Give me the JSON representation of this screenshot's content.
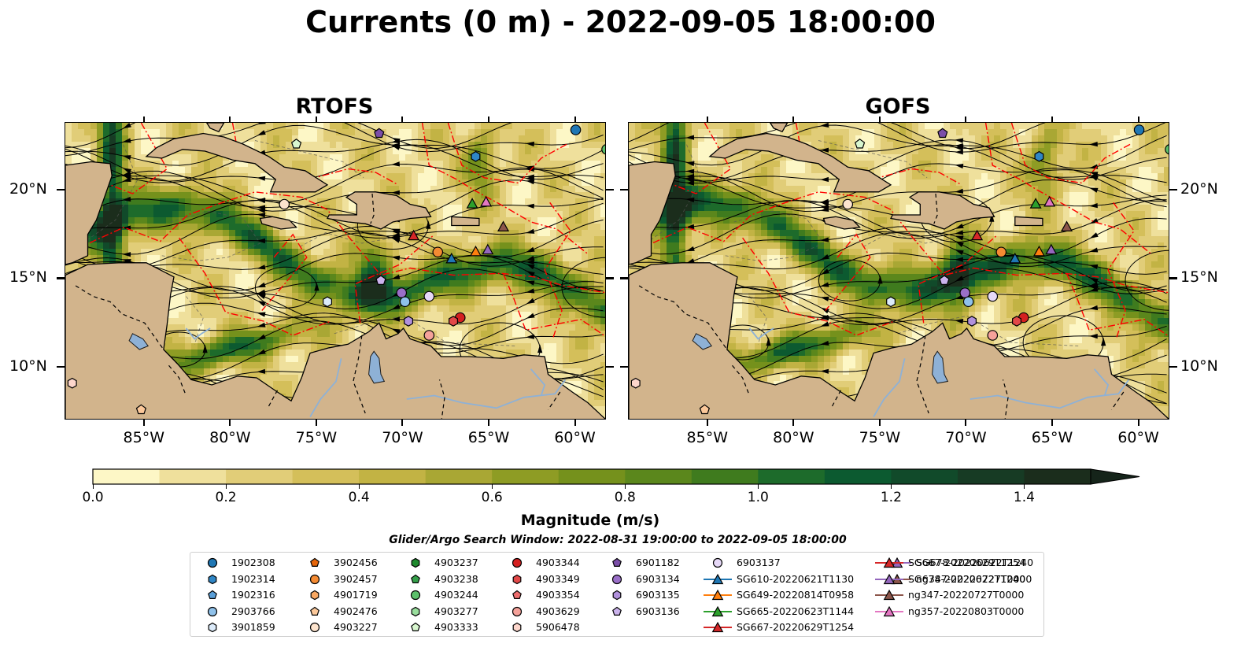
{
  "title": "Currents (0 m) - 2022-09-05 18:00:00",
  "panels": [
    {
      "id": "rtofs",
      "title": "RTOFS"
    },
    {
      "id": "gofs",
      "title": "GOFS"
    }
  ],
  "axes": {
    "x_ticks": [
      "85°W",
      "80°W",
      "75°W",
      "70°W",
      "65°W",
      "60°W"
    ],
    "x_values": [
      -85,
      -80,
      -75,
      -70,
      -65,
      -60
    ],
    "y_ticks": [
      "20°N",
      "15°N",
      "10°N"
    ],
    "y_values": [
      20,
      15,
      10
    ],
    "lon_range": [
      -89.6,
      -58.2
    ],
    "lat_range": [
      7.0,
      23.8
    ]
  },
  "colorbar": {
    "label": "Magnitude (m/s)",
    "ticks": [
      "0.0",
      "0.2",
      "0.4",
      "0.6",
      "0.8",
      "1.0",
      "1.2",
      "1.4"
    ],
    "tick_values": [
      0.0,
      0.2,
      0.4,
      0.6,
      0.8,
      1.0,
      1.2,
      1.4
    ],
    "range": [
      0.0,
      1.5
    ],
    "extend": "max",
    "colors": [
      "#fdf7c6",
      "#efe09c",
      "#e1cd78",
      "#d4bf5a",
      "#c2b344",
      "#a9a734",
      "#8e9c24",
      "#75911c",
      "#5b871c",
      "#3f7b1e",
      "#1d6b2b",
      "#0c5a30",
      "#114a2a",
      "#173b24",
      "#1b2d1c"
    ]
  },
  "search_window": "Glider/Argo Search Window: 2022-08-31 19:00:00 to 2022-09-05 18:00:00",
  "legend": [
    {
      "label": "1902308",
      "marker": "circle",
      "color": "#1f77b4"
    },
    {
      "label": "1902314",
      "marker": "hexagon",
      "color": "#2f86c6"
    },
    {
      "label": "1902316",
      "marker": "pentagon",
      "color": "#5a9fd8"
    },
    {
      "label": "2903766",
      "marker": "circle",
      "color": "#8fc1ea"
    },
    {
      "label": "3901859",
      "marker": "hexagon",
      "color": "#dcebfa"
    },
    {
      "label": "3902456",
      "marker": "pentagon",
      "color": "#e6660b"
    },
    {
      "label": "3902457",
      "marker": "circle",
      "color": "#f58b33"
    },
    {
      "label": "4901719",
      "marker": "hexagon",
      "color": "#f9a862"
    },
    {
      "label": "4902476",
      "marker": "pentagon",
      "color": "#fbc89a"
    },
    {
      "label": "4903227",
      "marker": "circle",
      "color": "#fde4ce"
    },
    {
      "label": "4903237",
      "marker": "hexagon",
      "color": "#1e8a2e"
    },
    {
      "label": "4903238",
      "marker": "pentagon",
      "color": "#35a04a"
    },
    {
      "label": "4903244",
      "marker": "circle",
      "color": "#5cc06b"
    },
    {
      "label": "4903277",
      "marker": "hexagon",
      "color": "#99de9d"
    },
    {
      "label": "4903333",
      "marker": "pentagon",
      "color": "#d8f6cf"
    },
    {
      "label": "4903344",
      "marker": "circle",
      "color": "#d42020"
    },
    {
      "label": "4903349",
      "marker": "hexagon",
      "color": "#e24848"
    },
    {
      "label": "4903354",
      "marker": "pentagon",
      "color": "#ee6e6e"
    },
    {
      "label": "4903629",
      "marker": "circle",
      "color": "#f5a29a"
    },
    {
      "label": "5906478",
      "marker": "hexagon",
      "color": "#fdd6cc"
    },
    {
      "label": "6901182",
      "marker": "pentagon",
      "color": "#7b4ea8"
    },
    {
      "label": "6903134",
      "marker": "circle",
      "color": "#9a6fc8"
    },
    {
      "label": "6903135",
      "marker": "hexagon",
      "color": "#b191dc"
    },
    {
      "label": "6903136",
      "marker": "pentagon",
      "color": "#cbb3ec"
    },
    {
      "label": "6903137",
      "marker": "circle",
      "color": "#e6d8f7"
    },
    {
      "label": "SG610-20220621T1130",
      "marker": "triangle",
      "color": "#1f77b4"
    },
    {
      "label": "SG649-20220814T0958",
      "marker": "triangle",
      "color": "#ff7f0e"
    },
    {
      "label": "SG665-20220623T1144",
      "marker": "triangle",
      "color": "#2ca02c"
    },
    {
      "label": "SG667-20220629T1254",
      "marker": "triangle",
      "color": "#d62728"
    },
    {
      "label": "SG678-20220622T1240",
      "marker": "triangle",
      "color": "#9467bd"
    },
    {
      "label": "ng347-20220727T0000",
      "marker": "triangle",
      "color": "#8c564b"
    },
    {
      "label": "ng357-20220803T0000",
      "marker": "triangle",
      "color": "#e377c2"
    }
  ],
  "platform_positions": [
    {
      "label": "1902308",
      "lon": -60.0,
      "lat": 23.4
    },
    {
      "label": "1902314",
      "lon": -65.8,
      "lat": 21.9
    },
    {
      "label": "4903244",
      "lon": -58.2,
      "lat": 22.3
    },
    {
      "label": "4903333",
      "lon": -76.2,
      "lat": 22.6
    },
    {
      "label": "6901182",
      "lon": -71.4,
      "lat": 23.2
    },
    {
      "label": "4903227",
      "lon": -76.9,
      "lat": 19.2
    },
    {
      "label": "SG665-20220623T1144",
      "lon": -66.0,
      "lat": 19.2
    },
    {
      "label": "ng357-20220803T0000",
      "lon": -65.2,
      "lat": 19.3
    },
    {
      "label": "ng347-20220727T0000",
      "lon": -64.2,
      "lat": 17.9
    },
    {
      "label": "SG667-20220629T1254",
      "lon": -69.4,
      "lat": 17.4
    },
    {
      "label": "3902457",
      "lon": -68.0,
      "lat": 16.5
    },
    {
      "label": "SG610-20220621T1130",
      "lon": -67.2,
      "lat": 16.1
    },
    {
      "label": "SG649-20220814T0958",
      "lon": -65.8,
      "lat": 16.5
    },
    {
      "label": "SG678-20220622T1240",
      "lon": -65.1,
      "lat": 16.6
    },
    {
      "label": "6903136",
      "lon": -71.3,
      "lat": 14.9
    },
    {
      "label": "6903134",
      "lon": -70.1,
      "lat": 14.2
    },
    {
      "label": "2903766",
      "lon": -69.9,
      "lat": 13.7
    },
    {
      "label": "6903137",
      "lon": -68.5,
      "lat": 14.0
    },
    {
      "label": "3901859",
      "lon": -74.4,
      "lat": 13.7
    },
    {
      "label": "6903135",
      "lon": -69.7,
      "lat": 12.6
    },
    {
      "label": "4903344",
      "lon": -66.7,
      "lat": 12.8
    },
    {
      "label": "4903349",
      "lon": -67.1,
      "lat": 12.6
    },
    {
      "label": "4903629",
      "lon": -68.5,
      "lat": 11.8
    },
    {
      "label": "5906478",
      "lon": -89.2,
      "lat": 9.1
    },
    {
      "label": "4902476",
      "lon": -85.2,
      "lat": 7.6
    }
  ]
}
